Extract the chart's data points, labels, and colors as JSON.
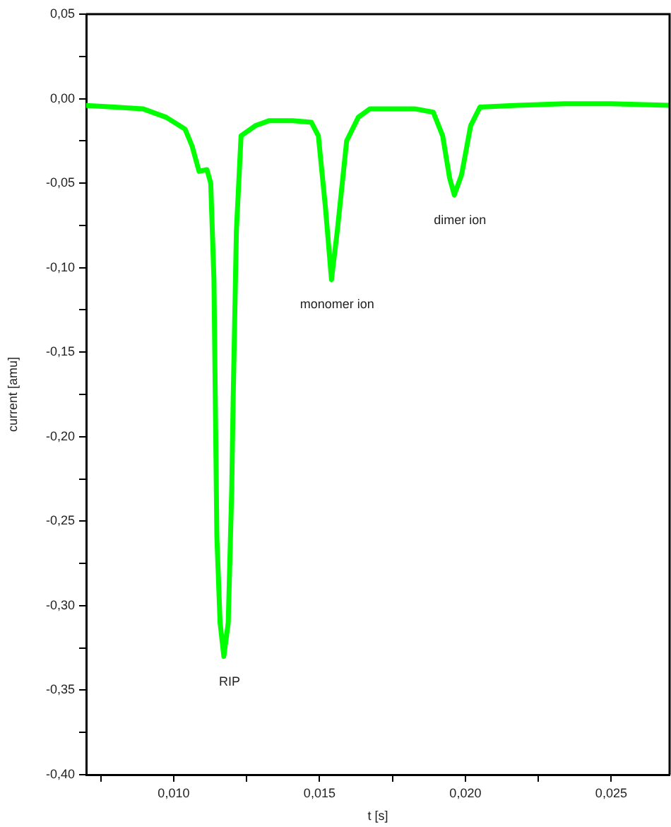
{
  "chart_data": {
    "type": "line",
    "xlabel": "t [s]",
    "ylabel": "current [amu]",
    "x": [
      0.007,
      0.00798,
      0.00894,
      0.00974,
      0.01039,
      0.01063,
      0.01087,
      0.01114,
      0.01127,
      0.01138,
      0.01148,
      0.01159,
      0.01172,
      0.01187,
      0.01199,
      0.01204,
      0.01215,
      0.01231,
      0.0128,
      0.01328,
      0.01408,
      0.01472,
      0.01496,
      0.0152,
      0.01541,
      0.01561,
      0.01593,
      0.01633,
      0.01673,
      0.01826,
      0.0189,
      0.01922,
      0.01946,
      0.01962,
      0.01987,
      0.02018,
      0.0205,
      0.02179,
      0.0234,
      0.025,
      0.027
    ],
    "series": [
      {
        "color": "#00ff00",
        "values": [
          -0.004,
          -0.005,
          -0.006,
          -0.011,
          -0.018,
          -0.028,
          -0.043,
          -0.042,
          -0.05,
          -0.107,
          -0.259,
          -0.31,
          -0.33,
          -0.31,
          -0.231,
          -0.177,
          -0.078,
          -0.022,
          -0.016,
          -0.013,
          -0.013,
          -0.014,
          -0.022,
          -0.064,
          -0.107,
          -0.078,
          -0.025,
          -0.011,
          -0.006,
          -0.006,
          -0.008,
          -0.022,
          -0.047,
          -0.057,
          -0.045,
          -0.016,
          -0.005,
          -0.004,
          -0.003,
          -0.003,
          -0.004
        ]
      }
    ],
    "xlim": [
      0.007,
      0.027
    ],
    "xticks": [
      {
        "value": 0.0075,
        "label": null
      },
      {
        "value": 0.01,
        "label": "0,010"
      },
      {
        "value": 0.0125,
        "label": null
      },
      {
        "value": 0.015,
        "label": "0,015"
      },
      {
        "value": 0.0175,
        "label": null
      },
      {
        "value": 0.02,
        "label": "0,020"
      },
      {
        "value": 0.0225,
        "label": null
      },
      {
        "value": 0.025,
        "label": "0,025"
      }
    ],
    "ylim": [
      -0.4,
      0.05
    ],
    "yticks": [
      {
        "value": 0.05,
        "label": "0,05"
      },
      {
        "value": 0.025,
        "label": null
      },
      {
        "value": 0,
        "label": "0,00"
      },
      {
        "value": -0.025,
        "label": null
      },
      {
        "value": -0.05,
        "label": "-0,05"
      },
      {
        "value": -0.075,
        "label": null
      },
      {
        "value": -0.1,
        "label": "-0,10"
      },
      {
        "value": -0.125,
        "label": null
      },
      {
        "value": -0.15,
        "label": "-0,15"
      },
      {
        "value": -0.175,
        "label": null
      },
      {
        "value": -0.2,
        "label": "-0,20"
      },
      {
        "value": -0.225,
        "label": null
      },
      {
        "value": -0.25,
        "label": "-0,25"
      },
      {
        "value": -0.275,
        "label": null
      },
      {
        "value": -0.3,
        "label": "-0,30"
      },
      {
        "value": -0.325,
        "label": null
      },
      {
        "value": -0.35,
        "label": "-0,35"
      },
      {
        "value": -0.375,
        "label": null
      },
      {
        "value": -0.4,
        "label": "-0,40"
      }
    ],
    "annotations": [
      {
        "text": "RIP",
        "x": 0.01172,
        "y": -0.33
      },
      {
        "text": "monomer ion",
        "x": 0.01541,
        "y": -0.107
      },
      {
        "text": "dimer ion",
        "x": 0.01962,
        "y": -0.057
      }
    ],
    "grid": false,
    "legend": false,
    "marker": "none",
    "line_style": "solid"
  }
}
